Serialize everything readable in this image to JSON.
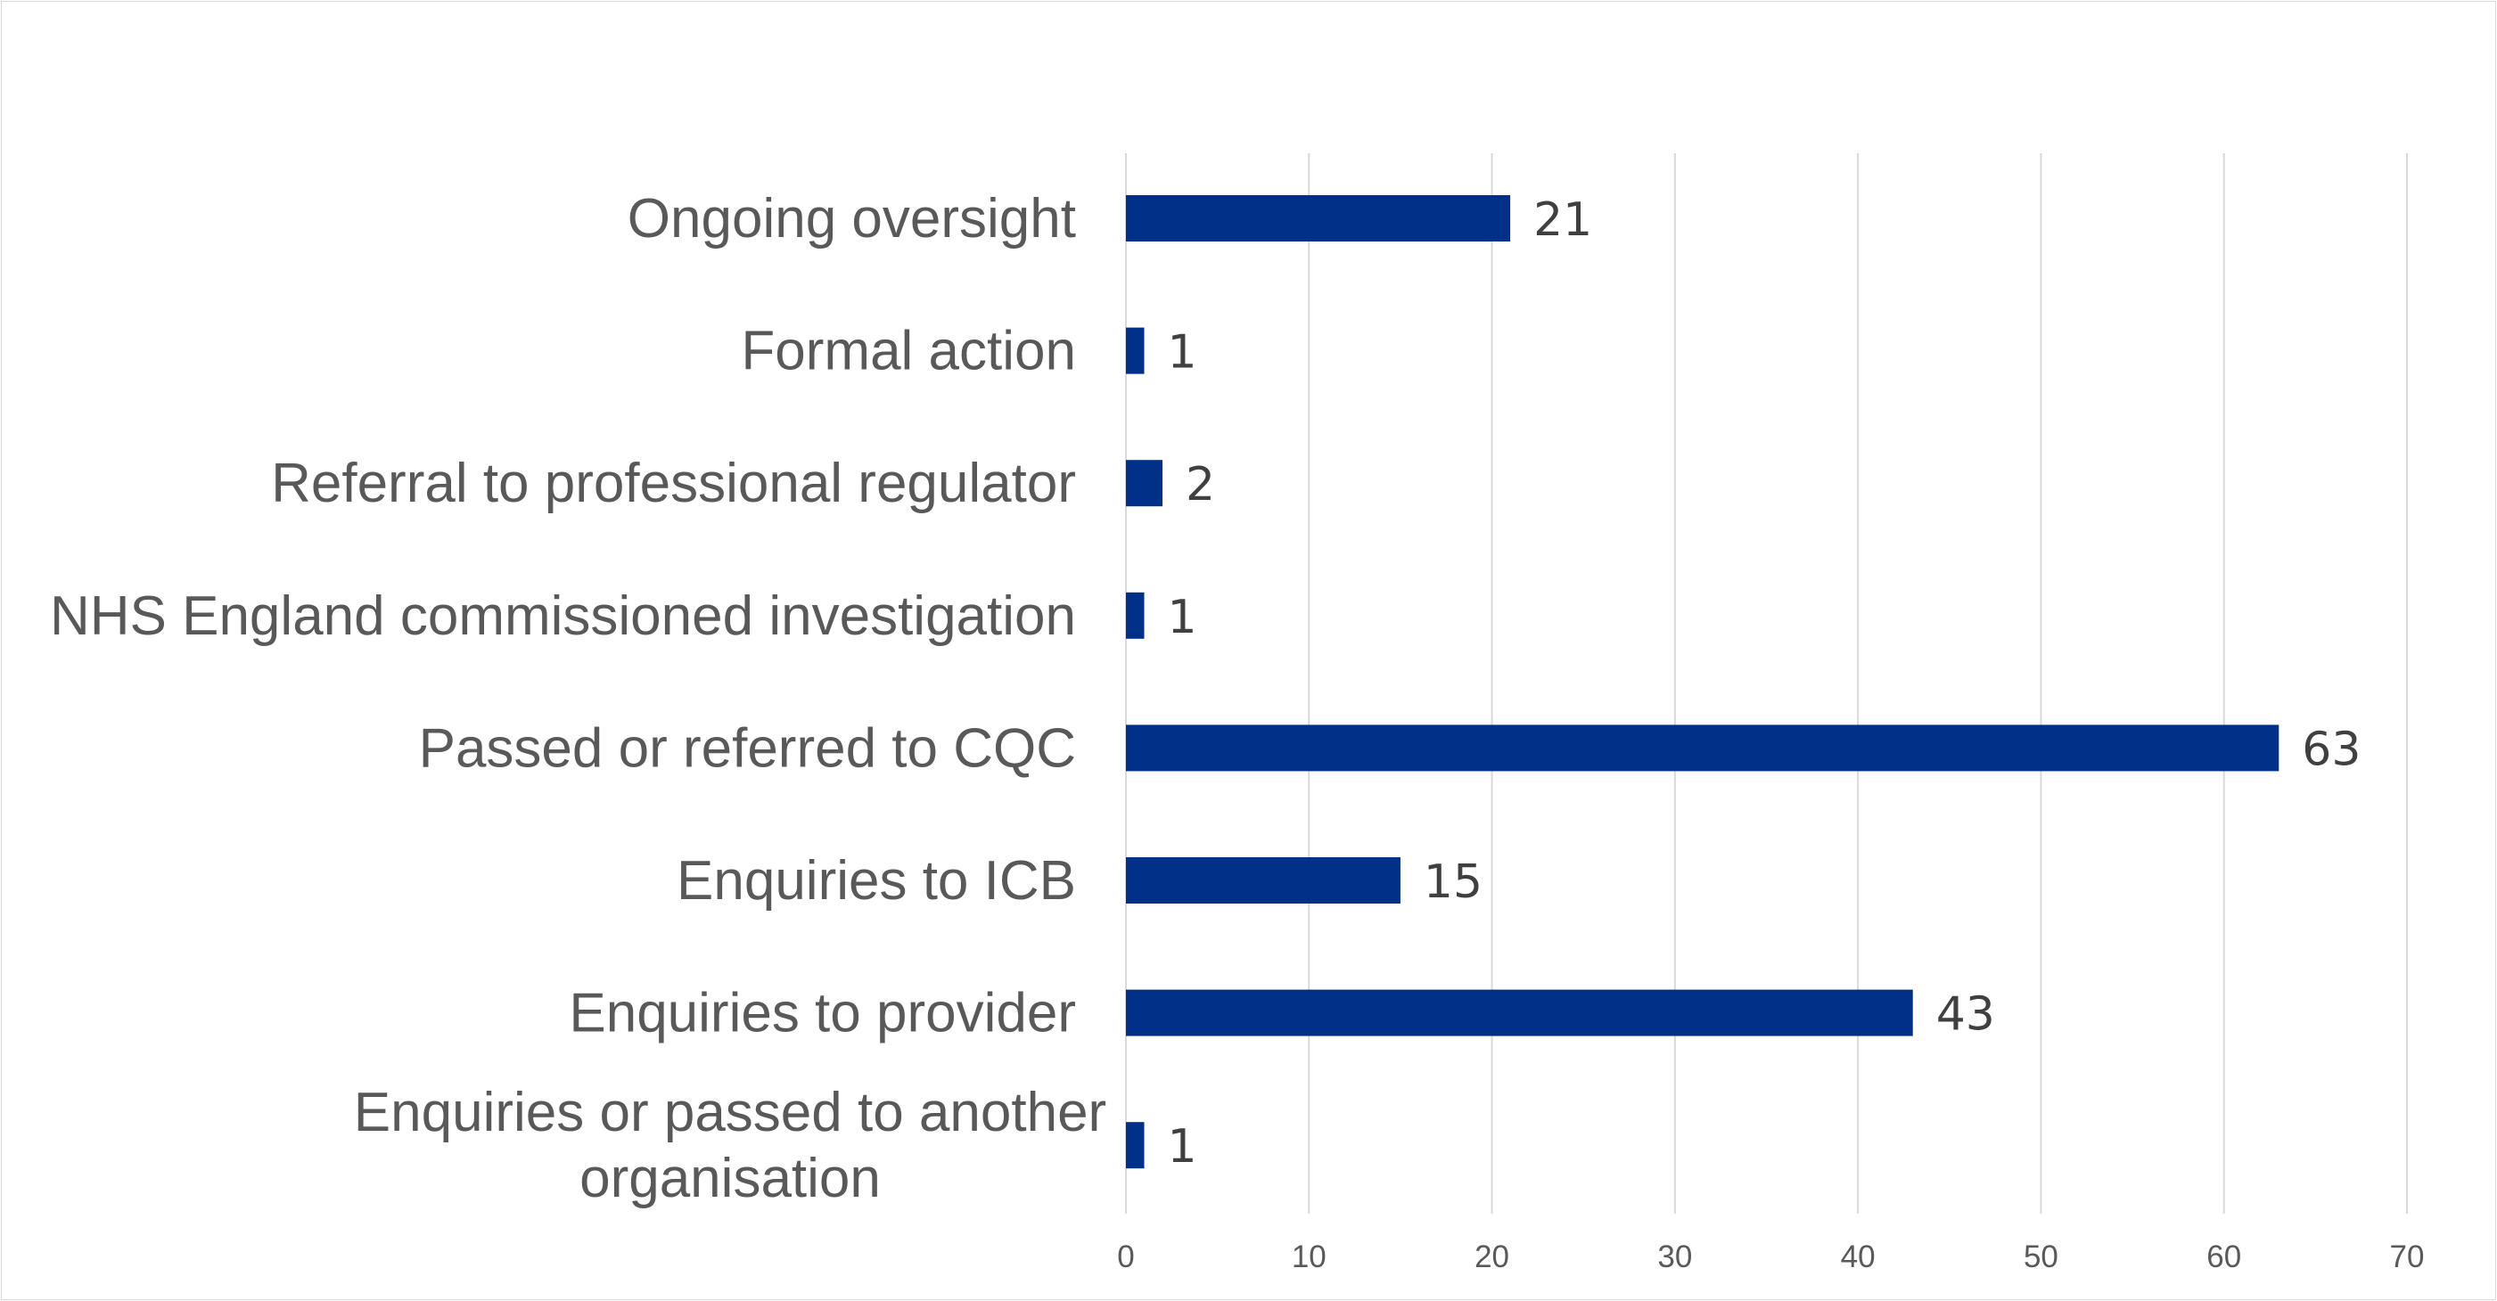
{
  "chart_data": {
    "type": "bar",
    "orientation": "horizontal",
    "title": "",
    "xlabel": "",
    "ylabel": "",
    "categories": [
      "Ongoing oversight",
      "Formal action",
      "Referral to professional regulator",
      "NHS England commissioned investigation",
      "Passed or referred to CQC",
      "Enquiries to ICB",
      "Enquiries to provider",
      "Enquiries or passed to another organisation"
    ],
    "category_lines": [
      [
        "Ongoing oversight"
      ],
      [
        "Formal action"
      ],
      [
        "Referral to professional regulator"
      ],
      [
        "NHS England commissioned investigation"
      ],
      [
        "Passed or referred to CQC"
      ],
      [
        "Enquiries to ICB"
      ],
      [
        "Enquiries to provider"
      ],
      [
        "Enquiries or passed to another",
        "organisation"
      ]
    ],
    "values": [
      21,
      1,
      2,
      1,
      63,
      15,
      43,
      1
    ],
    "xlim": [
      0,
      70
    ],
    "ticks": [
      "0",
      "10",
      "20",
      "30",
      "40",
      "50",
      "60",
      "70"
    ],
    "grid": true,
    "legend": "none",
    "colors": {
      "bar": "#003087",
      "grid": "#d9d9d9",
      "category_text": "#595959",
      "tick_text": "#595959",
      "data_label_text": "#404040"
    }
  }
}
